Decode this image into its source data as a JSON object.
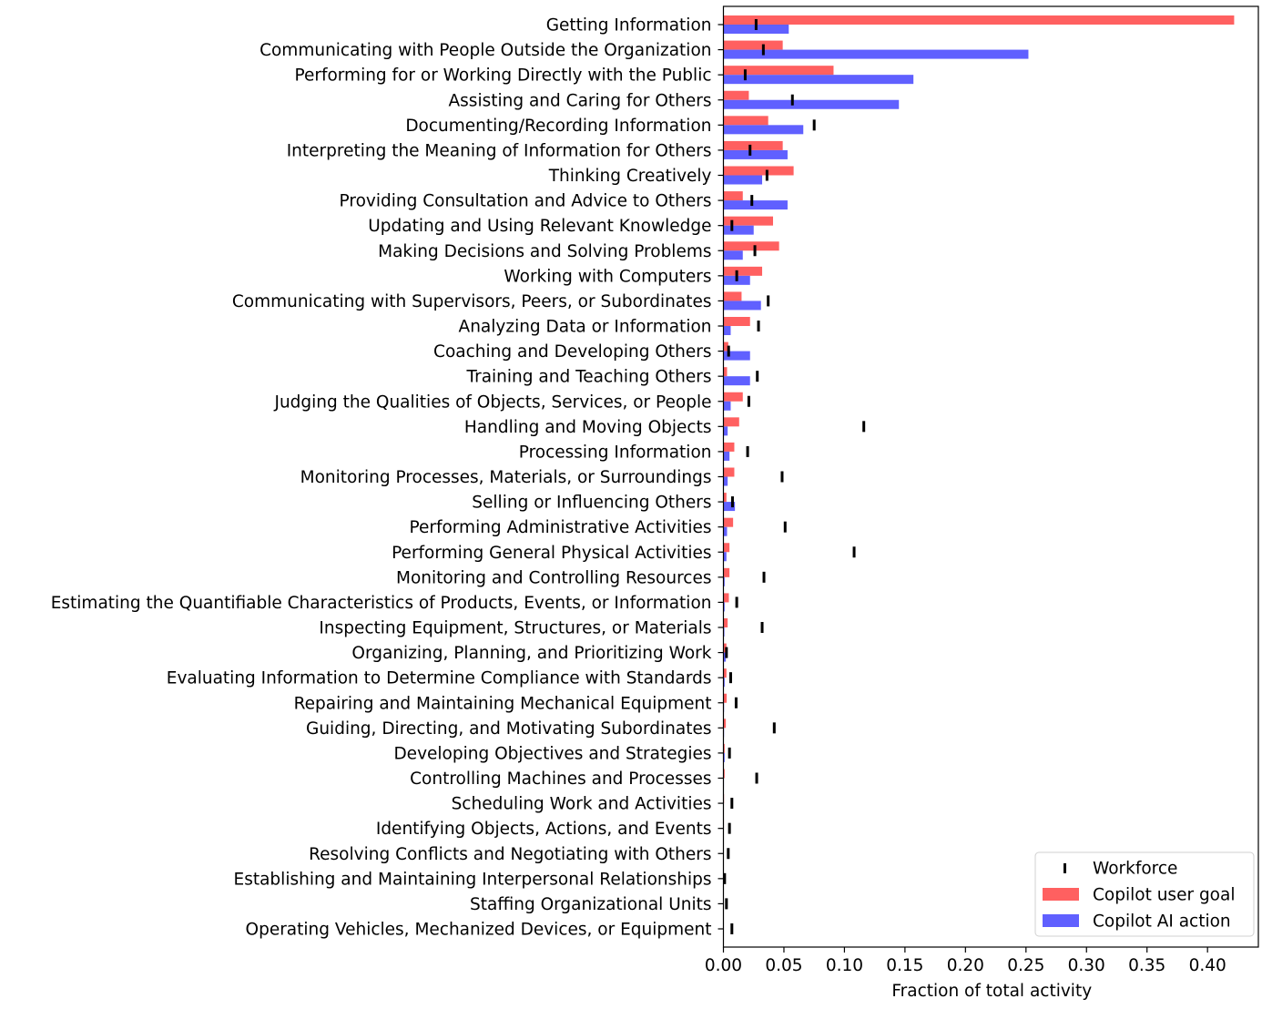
{
  "chart_data": {
    "type": "bar",
    "orientation": "horizontal",
    "title": "",
    "xlabel": "Fraction of total activity",
    "ylabel": "",
    "xlim": [
      0.0,
      0.442
    ],
    "xticks": [
      "0.00",
      "0.05",
      "0.10",
      "0.15",
      "0.20",
      "0.25",
      "0.30",
      "0.35",
      "0.40"
    ],
    "grid": false,
    "legend_position": "lower right",
    "categories": [
      "Getting Information",
      "Communicating with People Outside the Organization",
      "Performing for or Working Directly with the Public",
      "Assisting and Caring for Others",
      "Documenting/Recording Information",
      "Interpreting the Meaning of Information for Others",
      "Thinking Creatively",
      "Providing Consultation and Advice to Others",
      "Updating and Using Relevant Knowledge",
      "Making Decisions and Solving Problems",
      "Working with Computers",
      "Communicating with Supervisors, Peers, or Subordinates",
      "Analyzing Data or Information",
      "Coaching and Developing Others",
      "Training and Teaching Others",
      "Judging the Qualities of Objects, Services, or People",
      "Handling and Moving Objects",
      "Processing Information",
      "Monitoring Processes, Materials, or Surroundings",
      "Selling or Influencing Others",
      "Performing Administrative Activities",
      "Performing General Physical Activities",
      "Monitoring and Controlling Resources",
      "Estimating the Quantifiable Characteristics of Products, Events, or Information",
      "Inspecting Equipment, Structures, or Materials",
      "Organizing, Planning, and Prioritizing Work",
      "Evaluating Information to Determine Compliance with Standards",
      "Repairing and Maintaining Mechanical Equipment",
      "Guiding, Directing, and Motivating Subordinates",
      "Developing Objectives and Strategies",
      "Controlling Machines and Processes",
      "Scheduling Work and Activities",
      "Identifying Objects, Actions, and Events",
      "Resolving Conflicts and Negotiating with Others",
      "Establishing and Maintaining Interpersonal Relationships",
      "Staffing Organizational Units",
      "Operating Vehicles, Mechanized Devices, or Equipment"
    ],
    "series": [
      {
        "name": "Copilot user goal",
        "kind": "bar",
        "color": "#ff6060",
        "values": [
          0.422,
          0.049,
          0.091,
          0.021,
          0.037,
          0.049,
          0.058,
          0.016,
          0.041,
          0.046,
          0.032,
          0.015,
          0.022,
          0.004,
          0.003,
          0.016,
          0.013,
          0.009,
          0.009,
          0.0025,
          0.008,
          0.005,
          0.005,
          0.0045,
          0.0035,
          0.0025,
          0.0025,
          0.0027,
          0.002,
          0.001,
          0.001,
          0.0005,
          0.0004,
          0.0003,
          0.0003,
          0.0002,
          0.0002
        ]
      },
      {
        "name": "Copilot AI action",
        "kind": "bar",
        "color": "#6060ff",
        "values": [
          0.054,
          0.252,
          0.157,
          0.145,
          0.066,
          0.053,
          0.032,
          0.053,
          0.025,
          0.016,
          0.022,
          0.031,
          0.006,
          0.022,
          0.022,
          0.006,
          0.0035,
          0.005,
          0.0035,
          0.0095,
          0.003,
          0.0025,
          0.001,
          0.001,
          0.0008,
          0.002,
          0.001,
          0.0005,
          0.0005,
          0.001,
          0.0004,
          0.0003,
          0.0003,
          0.0002,
          0.0002,
          0.0001,
          0.0001
        ]
      },
      {
        "name": "Workforce",
        "kind": "marker",
        "color": "#000000",
        "values": [
          0.027,
          0.033,
          0.018,
          0.057,
          0.075,
          0.022,
          0.036,
          0.0235,
          0.007,
          0.026,
          0.011,
          0.037,
          0.029,
          0.0043,
          0.028,
          0.021,
          0.116,
          0.02,
          0.0485,
          0.0075,
          0.051,
          0.108,
          0.0335,
          0.011,
          0.032,
          0.0025,
          0.006,
          0.0105,
          0.042,
          0.005,
          0.0275,
          0.007,
          0.005,
          0.004,
          0.001,
          0.0025,
          0.007
        ]
      }
    ],
    "legend": [
      {
        "label": "Workforce",
        "kind": "marker",
        "color": "#000000"
      },
      {
        "label": "Copilot user goal",
        "kind": "bar",
        "color": "#ff6060"
      },
      {
        "label": "Copilot AI action",
        "kind": "bar",
        "color": "#6060ff"
      }
    ]
  }
}
